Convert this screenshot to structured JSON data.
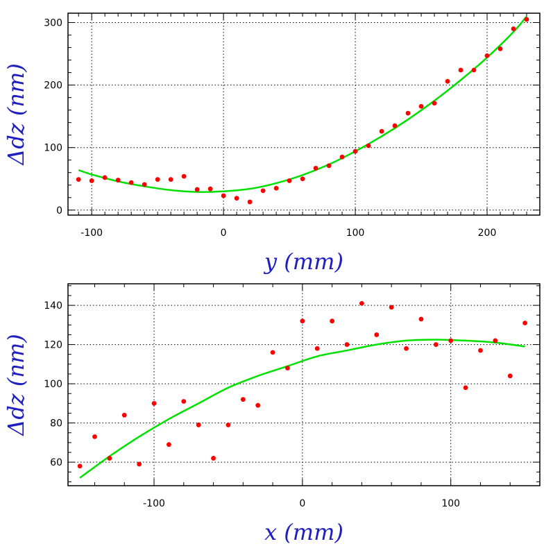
{
  "chart_data": [
    {
      "type": "scatter",
      "title": "",
      "xlabel": "y (mm)",
      "ylabel": "Δdz (nm)",
      "xlim": [
        -118,
        240
      ],
      "ylim": [
        -8,
        315
      ],
      "xticks": [
        -100,
        0,
        100,
        200
      ],
      "yticks": [
        0,
        100,
        200,
        300
      ],
      "x_minor_step": 10,
      "y_minor_step": 20,
      "grid": true,
      "colors": {
        "points": "#ff0000",
        "fit": "#00e000",
        "label": "#1f1fbf"
      },
      "series": [
        {
          "kind": "points",
          "x": [
            -110,
            -100,
            -90,
            -80,
            -70,
            -60,
            -50,
            -40,
            -30,
            -20,
            -10,
            0,
            10,
            20,
            30,
            40,
            50,
            60,
            70,
            80,
            90,
            100,
            110,
            120,
            130,
            140,
            150,
            160,
            170,
            180,
            190,
            200,
            210,
            220,
            230
          ],
          "y": [
            49,
            47,
            52,
            48,
            44,
            41,
            49,
            49,
            54,
            33,
            34,
            23,
            19,
            13,
            31,
            35,
            47,
            50,
            67,
            71,
            85,
            94,
            103,
            126,
            135,
            155,
            166,
            171,
            206,
            224,
            224,
            247,
            258,
            290,
            305
          ]
        },
        {
          "kind": "fit",
          "x": [
            -110,
            -100,
            -80,
            -60,
            -40,
            -20,
            0,
            20,
            40,
            60,
            80,
            100,
            120,
            140,
            160,
            180,
            200,
            220,
            230
          ],
          "y": [
            64,
            57,
            46,
            38,
            32,
            29,
            30,
            34,
            43,
            56,
            73,
            94,
            118,
            145,
            175,
            208,
            244,
            285,
            310
          ]
        }
      ]
    },
    {
      "type": "scatter",
      "title": "",
      "xlabel": "x (mm)",
      "ylabel": "Δdz (nm)",
      "xlim": [
        -158,
        160
      ],
      "ylim": [
        48,
        151
      ],
      "xticks": [
        -100,
        0,
        100
      ],
      "yticks": [
        60,
        80,
        100,
        120,
        140
      ],
      "x_minor_step": 20,
      "y_minor_step": 5,
      "grid": true,
      "colors": {
        "points": "#ff0000",
        "fit": "#00e000",
        "label": "#1f1fbf"
      },
      "series": [
        {
          "kind": "points",
          "x": [
            -150,
            -140,
            -130,
            -120,
            -110,
            -100,
            -90,
            -80,
            -70,
            -60,
            -50,
            -40,
            -30,
            -20,
            -10,
            0,
            10,
            20,
            30,
            40,
            50,
            60,
            70,
            80,
            90,
            100,
            110,
            120,
            130,
            140,
            150
          ],
          "y": [
            58,
            73,
            62,
            84,
            59,
            90,
            69,
            91,
            79,
            62,
            79,
            92,
            89,
            116,
            108,
            132,
            118,
            132,
            120,
            141,
            125,
            139,
            118,
            133,
            120,
            122,
            98,
            117,
            122,
            104,
            131
          ]
        },
        {
          "kind": "fit",
          "x": [
            -150,
            -130,
            -110,
            -90,
            -70,
            -50,
            -30,
            -10,
            10,
            30,
            50,
            70,
            90,
            110,
            130,
            150
          ],
          "y": [
            52,
            63,
            73,
            82,
            90,
            98,
            104,
            109,
            114,
            117,
            120,
            122,
            122.5,
            122,
            121,
            119
          ]
        }
      ]
    }
  ]
}
